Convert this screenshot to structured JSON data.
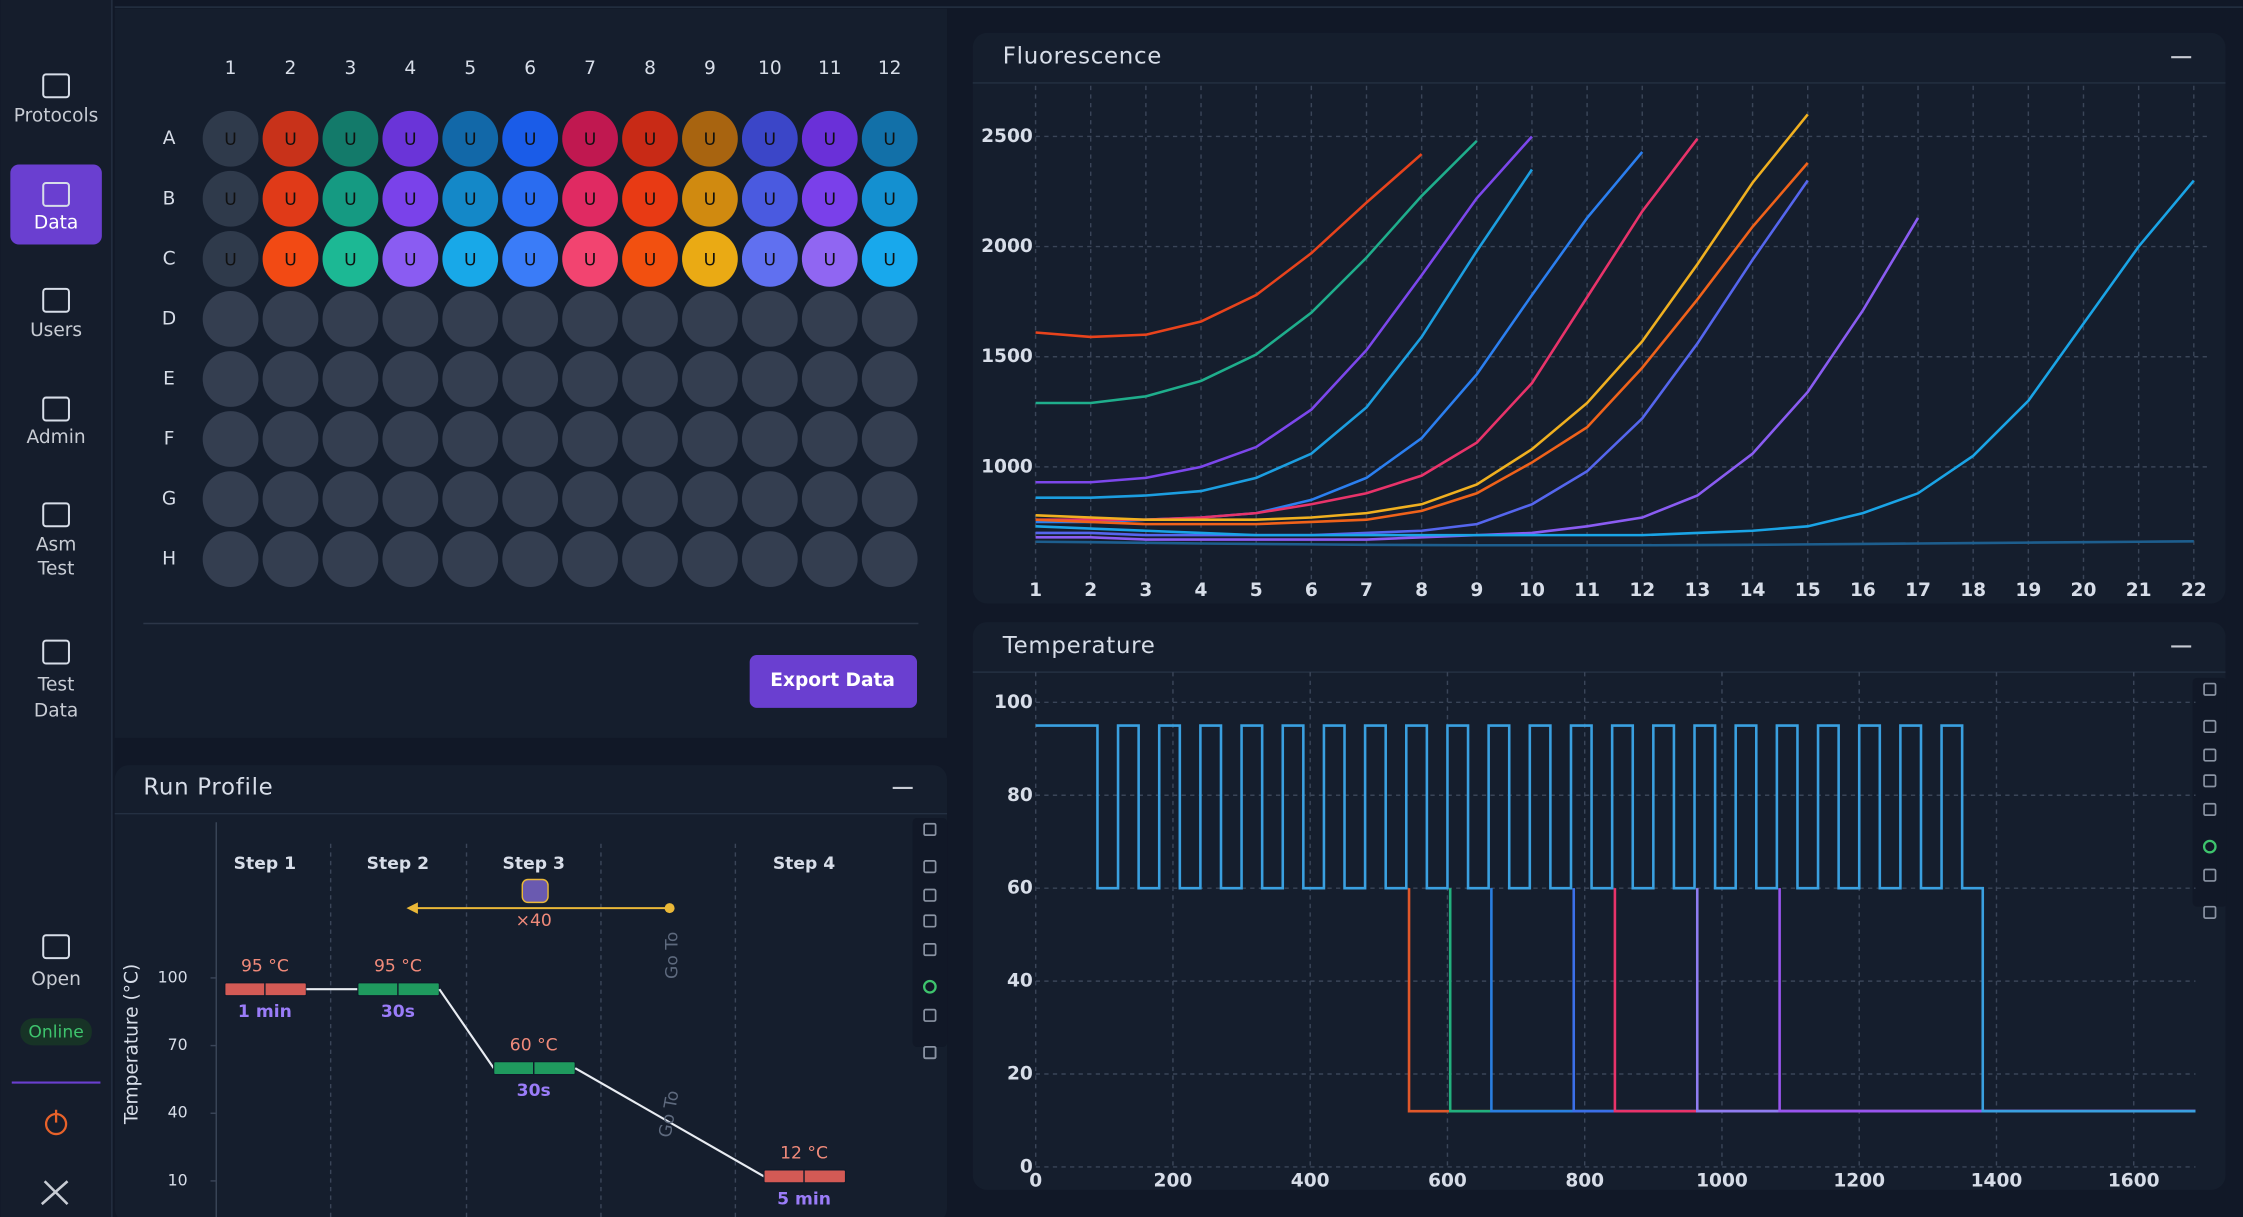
{
  "nav": [
    {
      "lines": [
        "Protocols"
      ]
    },
    {
      "lines": [
        "Data"
      ],
      "active": true
    },
    {
      "lines": [
        "Users"
      ]
    },
    {
      "lines": [
        "Admin"
      ]
    },
    {
      "lines": [
        "Asm",
        "Test"
      ]
    },
    {
      "lines": [
        "Test",
        "Data"
      ]
    },
    {
      "lines": [
        "Open"
      ]
    }
  ],
  "status": "Online",
  "plate": {
    "columns": [
      "1",
      "2",
      "3",
      "4",
      "5",
      "6",
      "7",
      "8",
      "9",
      "10",
      "11",
      "12"
    ],
    "rows": [
      "A",
      "B",
      "C",
      "D",
      "E",
      "F",
      "G",
      "H"
    ],
    "empty_color": "#343e50",
    "filled_rows": [
      [
        {
          "label": "U",
          "color": "#2f3a4b"
        },
        {
          "label": "U",
          "color": "#c8321a"
        },
        {
          "label": "U",
          "color": "#137a6a"
        },
        {
          "label": "U",
          "color": "#6a34d8"
        },
        {
          "label": "U",
          "color": "#1268a8"
        },
        {
          "label": "U",
          "color": "#1a5ce8"
        },
        {
          "label": "U",
          "color": "#c01850"
        },
        {
          "label": "U",
          "color": "#c82a16"
        },
        {
          "label": "U",
          "color": "#a86410"
        },
        {
          "label": "U",
          "color": "#3b46c8"
        },
        {
          "label": "U",
          "color": "#6a30d8"
        },
        {
          "label": "U",
          "color": "#1270a8"
        }
      ],
      [
        {
          "label": "U",
          "color": "#2f3a4b"
        },
        {
          "label": "U",
          "color": "#e03a18"
        },
        {
          "label": "U",
          "color": "#159a82"
        },
        {
          "label": "U",
          "color": "#7a42ea"
        },
        {
          "label": "U",
          "color": "#1488c8"
        },
        {
          "label": "U",
          "color": "#2a6cf0"
        },
        {
          "label": "U",
          "color": "#e02a62"
        },
        {
          "label": "U",
          "color": "#e83a14"
        },
        {
          "label": "U",
          "color": "#d08a10"
        },
        {
          "label": "U",
          "color": "#4a5ae0"
        },
        {
          "label": "U",
          "color": "#7a40ea"
        },
        {
          "label": "U",
          "color": "#1490d0"
        }
      ],
      [
        {
          "label": "U",
          "color": "#2f3a4b"
        },
        {
          "label": "U",
          "color": "#f24a14"
        },
        {
          "label": "U",
          "color": "#1cb894"
        },
        {
          "label": "U",
          "color": "#8a5cf2"
        },
        {
          "label": "U",
          "color": "#18a8e8"
        },
        {
          "label": "U",
          "color": "#3a7cf8"
        },
        {
          "label": "U",
          "color": "#f24470"
        },
        {
          "label": "U",
          "color": "#f25010"
        },
        {
          "label": "U",
          "color": "#eaaa14"
        },
        {
          "label": "U",
          "color": "#6070f0"
        },
        {
          "label": "U",
          "color": "#9066f2"
        },
        {
          "label": "U",
          "color": "#18a8ec"
        }
      ]
    ]
  },
  "export_button": "Export Data",
  "chart_data": [
    {
      "type": "line",
      "title": "Fluorescence",
      "x": [
        1,
        2,
        3,
        4,
        5,
        6,
        7,
        8,
        9,
        10,
        11,
        12,
        13,
        14,
        15,
        16,
        17,
        18,
        19,
        20,
        21,
        22
      ],
      "xlim": [
        0.38,
        22.29
      ],
      "ylim": [
        490,
        2730
      ],
      "xticks": [
        1,
        2,
        3,
        4,
        5,
        6,
        7,
        8,
        9,
        10,
        11,
        12,
        13,
        14,
        15,
        16,
        17,
        18,
        19,
        20,
        21,
        22
      ],
      "yticks": [
        1000,
        1500,
        2000,
        2500
      ],
      "grid": true,
      "series": [
        {
          "color": "#1d5e8e",
          "values": [
            660,
            658,
            655,
            652,
            650,
            648,
            646,
            645,
            644,
            644,
            644,
            644,
            645,
            646,
            648,
            650,
            652,
            654,
            656,
            658,
            660,
            662
          ]
        },
        {
          "color": "#e8431c",
          "values": [
            1610,
            1590,
            1600,
            1660,
            1780,
            1970,
            2200,
            2420,
            null,
            null,
            null,
            null,
            null,
            null,
            null,
            null,
            null,
            null,
            null,
            null,
            null,
            null
          ]
        },
        {
          "color": "#1fae8c",
          "values": [
            1290,
            1290,
            1320,
            1390,
            1510,
            1700,
            1950,
            2230,
            2480,
            null,
            null,
            null,
            null,
            null,
            null,
            null,
            null,
            null,
            null,
            null,
            null,
            null
          ]
        },
        {
          "color": "#7c47ec",
          "values": [
            930,
            930,
            950,
            1000,
            1090,
            1260,
            1530,
            1870,
            2220,
            2500,
            null,
            null,
            null,
            null,
            null,
            null,
            null,
            null,
            null,
            null,
            null,
            null
          ]
        },
        {
          "color": "#1c9ee0",
          "values": [
            860,
            860,
            870,
            890,
            950,
            1060,
            1270,
            1590,
            1980,
            2350,
            null,
            null,
            null,
            null,
            null,
            null,
            null,
            null,
            null,
            null,
            null,
            null
          ]
        },
        {
          "color": "#2b7ff0",
          "values": [
            750,
            750,
            760,
            770,
            790,
            850,
            950,
            1130,
            1420,
            1780,
            2130,
            2430,
            null,
            null,
            null,
            null,
            null,
            null,
            null,
            null,
            null,
            null
          ]
        },
        {
          "color": "#e8336a",
          "values": [
            760,
            760,
            760,
            770,
            790,
            830,
            880,
            960,
            1110,
            1380,
            1770,
            2160,
            2490,
            null,
            null,
            null,
            null,
            null,
            null,
            null,
            null,
            null
          ]
        },
        {
          "color": "#f0621a",
          "values": [
            760,
            750,
            740,
            740,
            740,
            750,
            760,
            800,
            880,
            1020,
            1180,
            1450,
            1760,
            2090,
            2380,
            null,
            null,
            null,
            null,
            null,
            null,
            null
          ]
        },
        {
          "color": "#f0b020",
          "values": [
            780,
            770,
            760,
            760,
            760,
            770,
            790,
            830,
            920,
            1080,
            1290,
            1570,
            1920,
            2290,
            2600,
            null,
            null,
            null,
            null,
            null,
            null,
            null
          ]
        },
        {
          "color": "#5566ee",
          "values": [
            700,
            700,
            690,
            690,
            690,
            690,
            700,
            710,
            740,
            830,
            980,
            1220,
            1560,
            1940,
            2300,
            null,
            null,
            null,
            null,
            null,
            null,
            null
          ]
        },
        {
          "color": "#8a5cf2",
          "values": [
            680,
            680,
            670,
            670,
            670,
            670,
            670,
            680,
            690,
            700,
            730,
            770,
            870,
            1060,
            1340,
            1710,
            2130,
            null,
            null,
            null,
            null,
            null
          ]
        },
        {
          "color": "#1aa4e6",
          "values": [
            730,
            720,
            710,
            700,
            690,
            690,
            690,
            690,
            690,
            690,
            690,
            690,
            700,
            710,
            730,
            790,
            880,
            1050,
            1300,
            1650,
            2000,
            2300
          ]
        }
      ]
    },
    {
      "type": "line",
      "title": "Temperature",
      "xlim": [
        0,
        1690
      ],
      "ylim": [
        0,
        106.5
      ],
      "xticks": [
        0,
        200,
        400,
        600,
        800,
        1000,
        1200,
        1400,
        1600
      ],
      "yticks": [
        0,
        20,
        40,
        60,
        80,
        100
      ],
      "grid": true,
      "series": [
        {
          "color": "#e0582a",
          "x": [
            544,
            544,
            1690
          ],
          "values": [
            60,
            12,
            12
          ]
        },
        {
          "color": "#22b07d",
          "x": [
            604,
            604,
            1690
          ],
          "values": [
            60,
            12,
            12
          ]
        },
        {
          "color": "#2a7fe0",
          "x": [
            664,
            664,
            1690
          ],
          "values": [
            60,
            12,
            12
          ]
        },
        {
          "color": "#3b6fe8",
          "x": [
            784,
            784,
            1690
          ],
          "values": [
            60,
            12,
            12
          ]
        },
        {
          "color": "#e8336a",
          "x": [
            844,
            844,
            1690
          ],
          "values": [
            60,
            12,
            12
          ]
        },
        {
          "color": "#8f7cf0",
          "x": [
            964,
            964,
            1690
          ],
          "values": [
            60,
            12,
            12
          ]
        },
        {
          "color": "#9955ee",
          "x": [
            1084,
            1084,
            1690
          ],
          "values": [
            60,
            12,
            12
          ]
        },
        {
          "color": "#3aa0e0",
          "x": [
            0,
            90,
            90,
            120,
            120,
            150,
            150,
            180,
            180,
            210,
            210,
            240,
            240,
            270,
            270,
            300,
            300,
            330,
            330,
            360,
            360,
            390,
            390,
            420,
            420,
            450,
            450,
            480,
            480,
            510,
            510,
            540,
            540,
            570,
            570,
            600,
            600,
            630,
            630,
            660,
            660,
            690,
            690,
            720,
            720,
            750,
            750,
            780,
            780,
            810,
            810,
            840,
            840,
            870,
            870,
            900,
            900,
            930,
            930,
            960,
            960,
            990,
            990,
            1020,
            1020,
            1050,
            1050,
            1080,
            1080,
            1110,
            1110,
            1140,
            1140,
            1170,
            1170,
            1200,
            1200,
            1230,
            1230,
            1260,
            1260,
            1290,
            1290,
            1320,
            1320,
            1350,
            1350,
            1380,
            1380,
            1690
          ],
          "values": [
            95,
            95,
            60,
            60,
            95,
            95,
            60,
            60,
            95,
            95,
            60,
            60,
            95,
            95,
            60,
            60,
            95,
            95,
            60,
            60,
            95,
            95,
            60,
            60,
            95,
            95,
            60,
            60,
            95,
            95,
            60,
            60,
            95,
            95,
            60,
            60,
            95,
            95,
            60,
            60,
            95,
            95,
            60,
            60,
            95,
            95,
            60,
            60,
            95,
            95,
            60,
            60,
            95,
            95,
            60,
            60,
            95,
            95,
            60,
            60,
            95,
            95,
            60,
            60,
            95,
            95,
            60,
            60,
            95,
            95,
            60,
            60,
            95,
            95,
            60,
            60,
            95,
            95,
            60,
            60,
            95,
            95,
            60,
            60,
            95,
            95,
            60,
            60,
            12,
            12
          ]
        }
      ]
    },
    {
      "type": "profile",
      "title": "Run Profile",
      "y_label": "Temperature (°C)",
      "ylim": [
        -6,
        169
      ],
      "yticks": [
        100,
        70,
        40,
        10
      ],
      "categories": [
        "Step 1",
        "Step 2",
        "Step 3",
        "Step 4"
      ],
      "values": [
        95,
        95,
        60,
        12
      ],
      "value_labels": [
        "95 °C",
        "95 °C",
        "60 °C",
        "12 °C"
      ],
      "durations": [
        "1 min",
        "30s",
        "30s",
        "5 min"
      ],
      "colors": [
        "#d35a55",
        "#1f9a5e",
        "#1f9a5e",
        "#d35a55"
      ],
      "repeat": {
        "value": 40,
        "label": "×40"
      },
      "annotations": [
        "Go To",
        "Go To"
      ]
    }
  ]
}
